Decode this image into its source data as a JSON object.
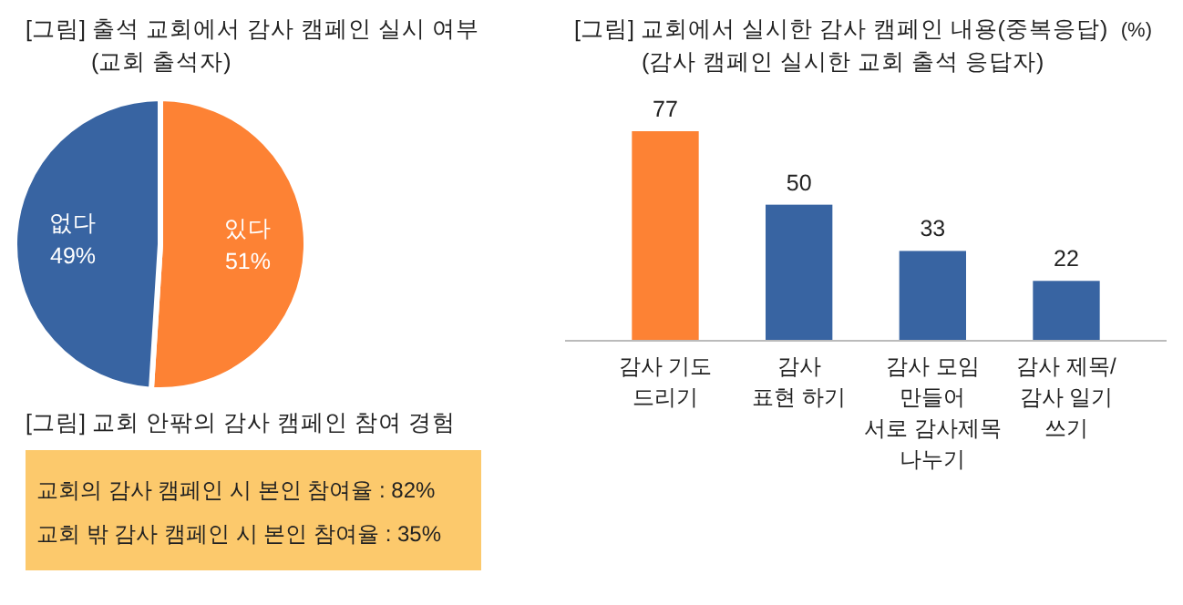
{
  "chart_data": [
    {
      "type": "pie",
      "title": "[그림] 출석 교회에서 감사 캠페인 실시 여부",
      "subtitle": "(교회 출석자)",
      "categories": [
        "있다",
        "없다"
      ],
      "values": [
        51,
        49
      ],
      "value_labels": [
        "51%",
        "49%"
      ],
      "colors": [
        "#fd8234",
        "#3864a2"
      ]
    },
    {
      "type": "bar",
      "title": "[그림] 교회에서 실시한 감사 캠페인 내용(중복응답)",
      "subtitle": "(감사 캠페인 실시한 교회 출석 응답자)",
      "ylabel": "(%)",
      "categories": [
        "감사 기도\n드리기",
        "감사\n표현 하기",
        "감사 모임\n만들어\n서로 감사제목\n나누기",
        "감사 제목/\n감사 일기\n쓰기"
      ],
      "values": [
        77,
        50,
        33,
        22
      ],
      "colors": [
        "#fd8234",
        "#3864a2",
        "#3864a2",
        "#3864a2"
      ],
      "data_labels": true
    },
    {
      "type": "other",
      "title": "[그림] 교회 안팎의 감사 캠페인 참여 경험",
      "annotations": [
        "교회의 감사 캠페인 시 본인 참여율 : 82%",
        "교회 밖 감사 캠페인 시 본인 참여율 : 35%"
      ]
    }
  ]
}
